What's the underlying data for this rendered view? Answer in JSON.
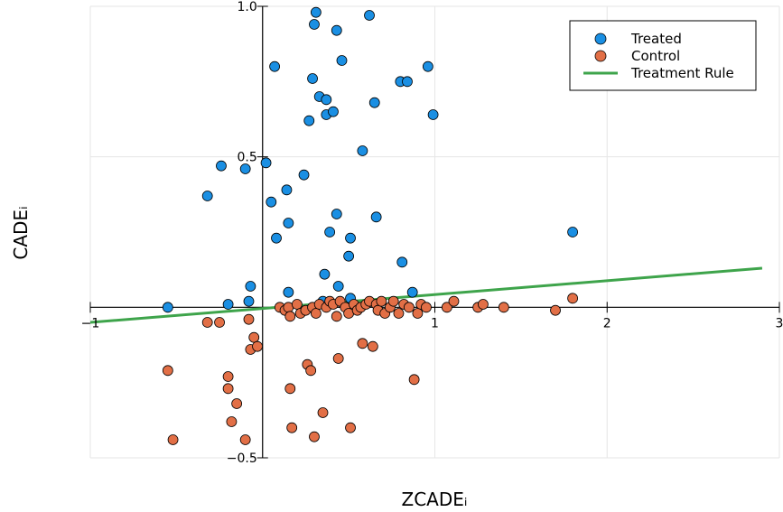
{
  "chart_data": {
    "type": "scatter",
    "title": "",
    "xlabel": "ZCADEᵢ",
    "ylabel": "CADEᵢ",
    "xlim": [
      -1,
      3
    ],
    "ylim": [
      -0.5,
      1.0
    ],
    "x_ticks": [
      -1,
      1,
      2,
      3
    ],
    "y_ticks": [
      -0.5,
      0.5,
      1.0
    ],
    "x_tick_labels": [
      "−1",
      "1",
      "2",
      "3"
    ],
    "y_tick_labels": [
      "−0.5",
      "0.5",
      "1.0"
    ],
    "grid": true,
    "legend_position": "top-right",
    "series": [
      {
        "name": "Treated",
        "kind": "scatter",
        "color": "#1a8fe3",
        "points": [
          [
            -0.55,
            0.0
          ],
          [
            -0.2,
            0.01
          ],
          [
            -0.32,
            0.37
          ],
          [
            -0.24,
            0.47
          ],
          [
            -0.1,
            0.46
          ],
          [
            -0.07,
            0.07
          ],
          [
            -0.08,
            0.02
          ],
          [
            0.02,
            0.48
          ],
          [
            0.05,
            0.35
          ],
          [
            0.07,
            0.8
          ],
          [
            0.08,
            0.23
          ],
          [
            0.14,
            0.39
          ],
          [
            0.15,
            0.28
          ],
          [
            0.15,
            0.05
          ],
          [
            0.24,
            0.44
          ],
          [
            0.27,
            0.62
          ],
          [
            0.29,
            0.76
          ],
          [
            0.3,
            0.94
          ],
          [
            0.31,
            0.98
          ],
          [
            0.33,
            0.7
          ],
          [
            0.35,
            0.02
          ],
          [
            0.36,
            0.11
          ],
          [
            0.37,
            0.64
          ],
          [
            0.37,
            0.69
          ],
          [
            0.39,
            0.25
          ],
          [
            0.41,
            0.65
          ],
          [
            0.43,
            0.31
          ],
          [
            0.43,
            0.92
          ],
          [
            0.44,
            0.07
          ],
          [
            0.46,
            0.82
          ],
          [
            0.5,
            0.17
          ],
          [
            0.51,
            0.23
          ],
          [
            0.51,
            0.03
          ],
          [
            0.58,
            0.52
          ],
          [
            0.62,
            0.97
          ],
          [
            0.65,
            0.68
          ],
          [
            0.66,
            0.3
          ],
          [
            0.8,
            0.75
          ],
          [
            0.81,
            0.15
          ],
          [
            0.84,
            0.75
          ],
          [
            0.87,
            0.05
          ],
          [
            0.96,
            0.8
          ],
          [
            0.99,
            0.64
          ],
          [
            1.8,
            0.25
          ]
        ]
      },
      {
        "name": "Control",
        "kind": "scatter",
        "color": "#e26f46",
        "points": [
          [
            -0.55,
            -0.21
          ],
          [
            -0.52,
            -0.44
          ],
          [
            -0.32,
            -0.05
          ],
          [
            -0.25,
            -0.05
          ],
          [
            -0.2,
            -0.23
          ],
          [
            -0.2,
            -0.27
          ],
          [
            -0.18,
            -0.38
          ],
          [
            -0.15,
            -0.32
          ],
          [
            -0.1,
            -0.44
          ],
          [
            -0.08,
            -0.04
          ],
          [
            -0.07,
            -0.14
          ],
          [
            -0.05,
            -0.1
          ],
          [
            -0.03,
            -0.13
          ],
          [
            0.1,
            0.0
          ],
          [
            0.13,
            -0.01
          ],
          [
            0.15,
            0.0
          ],
          [
            0.16,
            -0.27
          ],
          [
            0.16,
            -0.03
          ],
          [
            0.17,
            -0.4
          ],
          [
            0.2,
            0.01
          ],
          [
            0.22,
            -0.02
          ],
          [
            0.25,
            -0.01
          ],
          [
            0.26,
            -0.19
          ],
          [
            0.28,
            -0.21
          ],
          [
            0.29,
            0.0
          ],
          [
            0.3,
            -0.43
          ],
          [
            0.31,
            -0.02
          ],
          [
            0.33,
            0.01
          ],
          [
            0.35,
            -0.35
          ],
          [
            0.37,
            0.0
          ],
          [
            0.39,
            0.02
          ],
          [
            0.41,
            0.01
          ],
          [
            0.43,
            -0.03
          ],
          [
            0.44,
            -0.17
          ],
          [
            0.45,
            0.02
          ],
          [
            0.48,
            0.0
          ],
          [
            0.5,
            -0.02
          ],
          [
            0.51,
            -0.4
          ],
          [
            0.53,
            0.01
          ],
          [
            0.55,
            -0.01
          ],
          [
            0.57,
            0.0
          ],
          [
            0.58,
            -0.12
          ],
          [
            0.6,
            0.01
          ],
          [
            0.62,
            0.02
          ],
          [
            0.64,
            -0.13
          ],
          [
            0.66,
            0.01
          ],
          [
            0.67,
            -0.01
          ],
          [
            0.69,
            0.02
          ],
          [
            0.71,
            -0.02
          ],
          [
            0.74,
            0.0
          ],
          [
            0.76,
            0.02
          ],
          [
            0.79,
            -0.02
          ],
          [
            0.82,
            0.01
          ],
          [
            0.85,
            0.0
          ],
          [
            0.88,
            -0.24
          ],
          [
            0.9,
            -0.02
          ],
          [
            0.92,
            0.01
          ],
          [
            0.95,
            0.0
          ],
          [
            1.07,
            0.0
          ],
          [
            1.11,
            0.02
          ],
          [
            1.25,
            0.0
          ],
          [
            1.28,
            0.01
          ],
          [
            1.4,
            0.0
          ],
          [
            1.7,
            -0.01
          ],
          [
            1.8,
            0.03
          ]
        ]
      },
      {
        "name": "Treatment Rule",
        "kind": "line",
        "color": "#3ea44b",
        "points": [
          [
            -1,
            -0.05
          ],
          [
            2.9,
            0.13
          ]
        ]
      }
    ]
  }
}
